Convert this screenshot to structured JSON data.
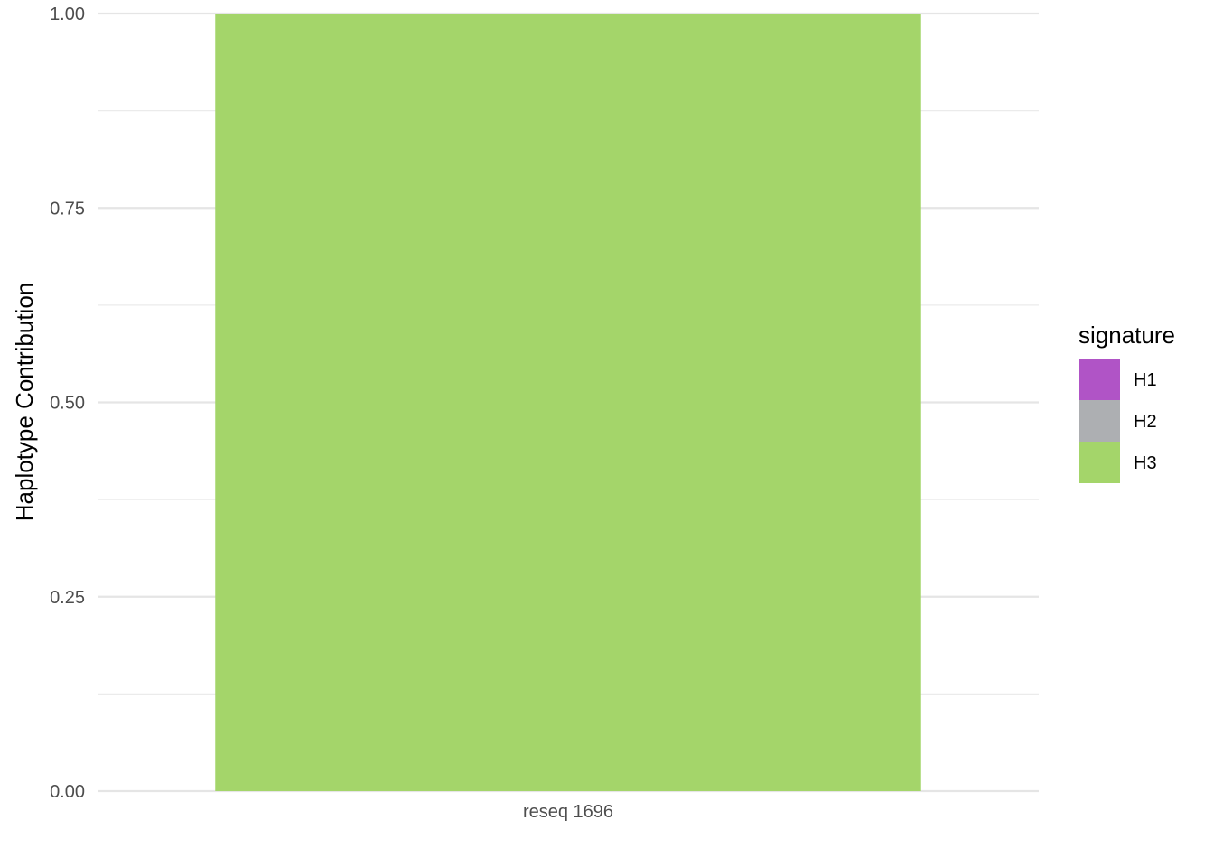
{
  "chart_data": {
    "type": "bar",
    "stacked": true,
    "categories": [
      "reseq 1696"
    ],
    "series": [
      {
        "name": "H1",
        "values": [
          0
        ],
        "color": "#B054C6"
      },
      {
        "name": "H2",
        "values": [
          0
        ],
        "color": "#ADAFB2"
      },
      {
        "name": "H3",
        "values": [
          1.0
        ],
        "color": "#A4D56A"
      }
    ],
    "title": "",
    "xlabel": "",
    "ylabel": "Haplotype Contribution",
    "ylim": [
      0,
      1
    ],
    "yticks": [
      "0.00",
      "0.25",
      "0.50",
      "0.75",
      "1.00"
    ],
    "grid": true,
    "legend": {
      "title": "signature",
      "position": "right"
    }
  }
}
